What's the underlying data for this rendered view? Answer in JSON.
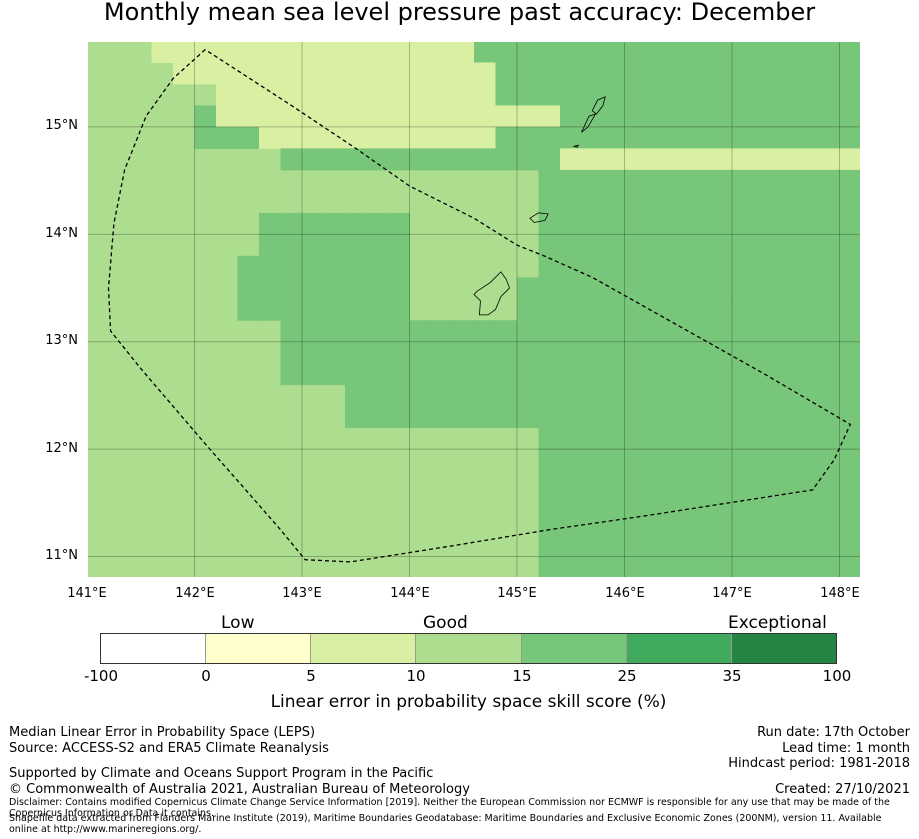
{
  "title": "Monthly mean sea level pressure past accuracy: December",
  "map": {
    "lon_range": [
      141,
      148.2
    ],
    "lat_range": [
      10.8,
      15.8
    ],
    "y_ticks": [
      "15°N",
      "14°N",
      "13°N",
      "12°N",
      "11°N"
    ],
    "x_ticks": [
      "141°E",
      "142°E",
      "143°E",
      "144°E",
      "145°E",
      "146°E",
      "147°E",
      "148°E"
    ],
    "grid_lons": [
      142,
      143,
      144,
      145,
      146,
      147,
      148
    ],
    "grid_lats": [
      11,
      12,
      13,
      14,
      15
    ],
    "grid_color": "#000000",
    "region_boundary": [
      [
        142.1,
        15.72
      ],
      [
        141.8,
        15.45
      ],
      [
        141.55,
        15.1
      ],
      [
        141.35,
        14.6
      ],
      [
        141.25,
        14.1
      ],
      [
        141.2,
        13.5
      ],
      [
        141.22,
        13.1
      ],
      [
        141.5,
        12.75
      ],
      [
        141.8,
        12.4
      ],
      [
        142.1,
        12.05
      ],
      [
        142.45,
        11.65
      ],
      [
        142.8,
        11.25
      ],
      [
        143.03,
        10.97
      ],
      [
        143.45,
        10.95
      ],
      [
        144.4,
        11.1
      ],
      [
        145.3,
        11.25
      ],
      [
        146.2,
        11.38
      ],
      [
        147.1,
        11.52
      ],
      [
        147.75,
        11.62
      ],
      [
        147.95,
        11.9
      ],
      [
        148.1,
        12.23
      ],
      [
        147.3,
        12.7
      ],
      [
        146.5,
        13.15
      ],
      [
        145.7,
        13.6
      ],
      [
        145.25,
        13.8
      ],
      [
        145.0,
        13.9
      ],
      [
        144.6,
        14.15
      ],
      [
        144.0,
        14.45
      ],
      [
        143.5,
        14.8
      ],
      [
        142.9,
        15.2
      ],
      [
        142.1,
        15.72
      ]
    ],
    "islands": [
      [
        [
          144.63,
          13.47
        ],
        [
          144.75,
          13.55
        ],
        [
          144.85,
          13.65
        ],
        [
          144.9,
          13.58
        ],
        [
          144.93,
          13.5
        ],
        [
          144.85,
          13.42
        ],
        [
          144.8,
          13.3
        ],
        [
          144.73,
          13.25
        ],
        [
          144.65,
          13.25
        ],
        [
          144.66,
          13.38
        ],
        [
          144.6,
          13.44
        ]
      ],
      [
        [
          145.12,
          14.15
        ],
        [
          145.2,
          14.2
        ],
        [
          145.29,
          14.19
        ],
        [
          145.26,
          14.13
        ],
        [
          145.16,
          14.11
        ]
      ],
      [
        [
          145.6,
          14.95
        ],
        [
          145.67,
          15.1
        ],
        [
          145.73,
          15.12
        ],
        [
          145.66,
          15.0
        ]
      ],
      [
        [
          145.7,
          15.15
        ],
        [
          145.75,
          15.25
        ],
        [
          145.82,
          15.28
        ],
        [
          145.8,
          15.2
        ],
        [
          145.74,
          15.12
        ]
      ],
      [
        [
          145.53,
          14.82
        ],
        [
          145.57,
          14.83
        ],
        [
          145.56,
          14.81
        ]
      ]
    ],
    "cell_size_deg": 0.2,
    "cell_values": [
      "000222222222222222111111111111111111",
      "000022222222222222211111111111111111",
      "000000222222222222211111111111111111",
      "000001222222222222222211111111111111",
      "000001112222222222211111111111111111",
      "000000000111111111111122222222222222",
      "000000000000000000000111111111111111",
      "000000000000000000000111111111111111",
      "000000001111111000000111111111111111",
      "000000001111111000000111111111111111",
      "000000011111111000000111111111111111",
      "000000011111111000001111111111111111",
      "000000011111111000001111111111111111",
      "000000000111111111111111111111111111",
      "000000000111111111111111111111111111",
      "000000000111111111111111111111111111",
      "000000000000111111111111111111111111",
      "000000000000111111111111111111111111",
      "000000000000000000000111111111111111",
      "000000000000000000000111111111111111",
      "000000000000000000000111111111111111",
      "000000000000000000000111111111111111",
      "000000000000000000000111111111111111",
      "000000000000000000000111111111111111",
      "000000000000000000000111111111111111"
    ]
  },
  "colorbar": {
    "categories": [
      "Low",
      "Good",
      "Exceptional"
    ],
    "ticks": [
      "-100",
      "0",
      "5",
      "10",
      "15",
      "25",
      "35",
      "100"
    ],
    "colors": [
      "#ffffff",
      "#ffffcc",
      "#d9f0a3",
      "#addd8e",
      "#78c679",
      "#41ab5d",
      "#238443"
    ],
    "label": "Linear error in probability space skill score (%)"
  },
  "footer": {
    "left": [
      "Median Linear Error in Probability Space (LEPS)",
      "Source: ACCESS-S2 and ERA5 Climate Reanalysis",
      "Supported by Climate and Oceans Support Program in the Pacific",
      "© Commonwealth of Australia 2021, Australian Bureau of Meteorology"
    ],
    "right": [
      "Run date: 17th October",
      "Lead time: 1 month",
      "Hindcast period: 1981-2018",
      "Created: 27/10/2021"
    ],
    "disclaimer": "Disclaimer: Contains modified Copernicus Climate Change Service Information [2019]. Neither the European Commission nor ECMWF is responsible for any use that may be made of the Copernicus Information or Data it contains.",
    "shapefile": "Shapefile data extracted from Flanders Marine Institute (2019), Maritime Boundaries Geodatabase: Maritime Boundaries and Exclusive Economic Zones (200NM), version 11. Available online at http://www.marineregions.org/."
  }
}
